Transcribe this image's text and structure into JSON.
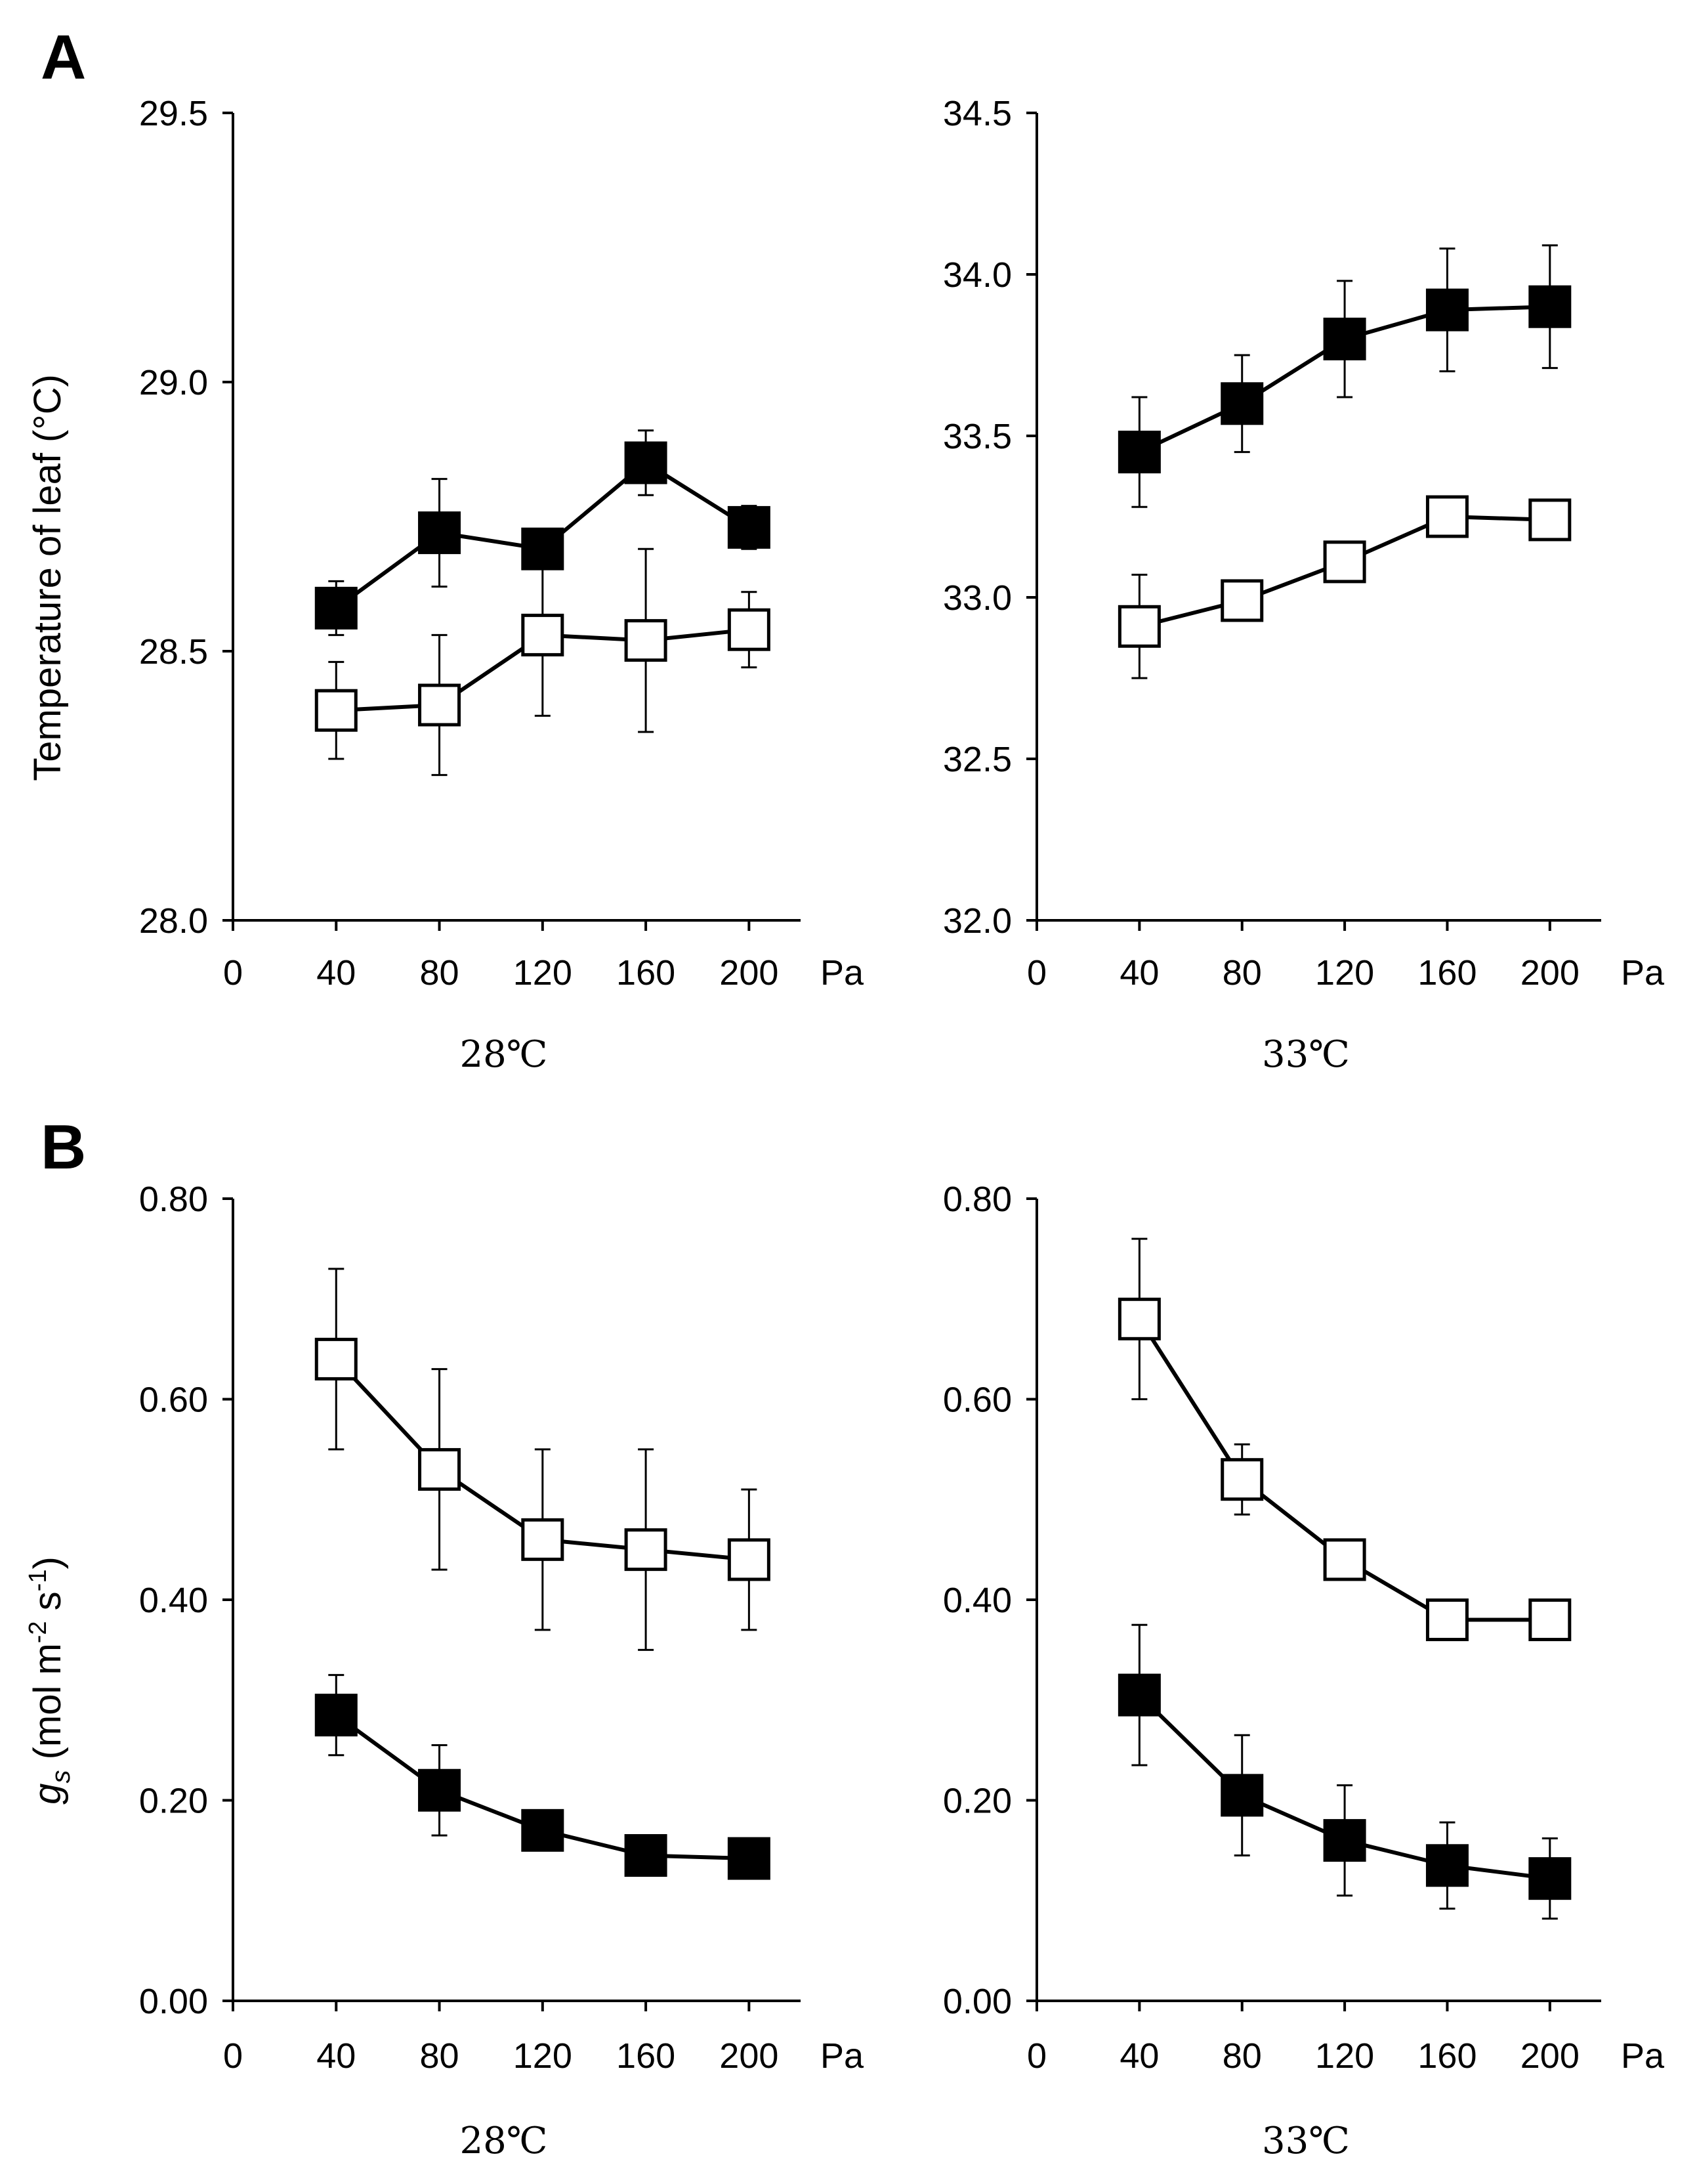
{
  "figure": {
    "panel_labels": [
      "A",
      "B"
    ],
    "ylabel_A": "Temperature of leaf (°C)",
    "ylabel_B": {
      "main": "g",
      "sub": "s",
      "unit_open": " (mol m",
      "exp1": "-2",
      "mid": " s",
      "exp2": "-1",
      "close": ")"
    },
    "x_unit": "Pa"
  },
  "chart_data": [
    {
      "id": "A-28",
      "panel": "A",
      "type": "line",
      "subtitle": "28℃",
      "xlabel": "Pa",
      "ylabel": "Temperature of leaf (°C)",
      "x": [
        40,
        80,
        120,
        160,
        200
      ],
      "xlim": [
        0,
        220
      ],
      "xticks": [
        0,
        40,
        80,
        120,
        160,
        200
      ],
      "ylim": [
        28.0,
        29.5
      ],
      "yticks": [
        "28.0",
        "28.5",
        "29.0",
        "29.5"
      ],
      "series": [
        {
          "name": "filled",
          "marker": "filled-square",
          "values": [
            28.58,
            28.72,
            28.69,
            28.85,
            28.73
          ],
          "err": [
            0.05,
            0.1,
            0.03,
            0.06,
            0.04
          ]
        },
        {
          "name": "open",
          "marker": "open-square",
          "values": [
            28.39,
            28.4,
            28.53,
            28.52,
            28.54
          ],
          "err": [
            0.09,
            0.13,
            0.15,
            0.17,
            0.07
          ]
        }
      ]
    },
    {
      "id": "A-33",
      "panel": "A",
      "type": "line",
      "subtitle": "33℃",
      "xlabel": "Pa",
      "ylabel": "",
      "x": [
        40,
        80,
        120,
        160,
        200
      ],
      "xlim": [
        0,
        220
      ],
      "xticks": [
        0,
        40,
        80,
        120,
        160,
        200
      ],
      "ylim": [
        32.0,
        34.5
      ],
      "yticks": [
        "32.0",
        "32.5",
        "33.0",
        "33.5",
        "34.0",
        "34.5"
      ],
      "series": [
        {
          "name": "filled",
          "marker": "filled-square",
          "values": [
            33.45,
            33.6,
            33.8,
            33.89,
            33.9
          ],
          "err": [
            0.17,
            0.15,
            0.18,
            0.19,
            0.19
          ]
        },
        {
          "name": "open",
          "marker": "open-square",
          "values": [
            32.91,
            32.99,
            33.11,
            33.25,
            33.24
          ],
          "err": [
            0.16,
            0.0,
            0.0,
            0.0,
            0.0
          ]
        }
      ]
    },
    {
      "id": "B-28",
      "panel": "B",
      "type": "line",
      "subtitle": "28℃",
      "xlabel": "Pa",
      "ylabel": "gs (mol m-2 s-1)",
      "x": [
        40,
        80,
        120,
        160,
        200
      ],
      "xlim": [
        0,
        220
      ],
      "xticks": [
        0,
        40,
        80,
        120,
        160,
        200
      ],
      "ylim": [
        0.0,
        0.8
      ],
      "yticks": [
        "0.00",
        "0.20",
        "0.40",
        "0.60",
        "0.80"
      ],
      "series": [
        {
          "name": "open",
          "marker": "open-square",
          "values": [
            0.64,
            0.53,
            0.46,
            0.45,
            0.44
          ],
          "err": [
            0.09,
            0.1,
            0.09,
            0.1,
            0.07
          ]
        },
        {
          "name": "filled",
          "marker": "filled-square",
          "values": [
            0.285,
            0.21,
            0.17,
            0.145,
            0.142
          ],
          "err": [
            0.04,
            0.045,
            0.02,
            0.02,
            0.02
          ]
        }
      ]
    },
    {
      "id": "B-33",
      "panel": "B",
      "type": "line",
      "subtitle": "33℃",
      "xlabel": "Pa",
      "ylabel": "",
      "x": [
        40,
        80,
        120,
        160,
        200
      ],
      "xlim": [
        0,
        220
      ],
      "xticks": [
        0,
        40,
        80,
        120,
        160,
        200
      ],
      "ylim": [
        0.0,
        0.8
      ],
      "yticks": [
        "0.00",
        "0.20",
        "0.40",
        "0.60",
        "0.80"
      ],
      "series": [
        {
          "name": "open",
          "marker": "open-square",
          "values": [
            0.68,
            0.52,
            0.44,
            0.38,
            0.38
          ],
          "err": [
            0.08,
            0.035,
            0.0,
            0.0,
            0.0
          ]
        },
        {
          "name": "filled",
          "marker": "filled-square",
          "values": [
            0.305,
            0.205,
            0.16,
            0.135,
            0.122
          ],
          "err": [
            0.07,
            0.06,
            0.055,
            0.043,
            0.04
          ]
        }
      ]
    }
  ]
}
